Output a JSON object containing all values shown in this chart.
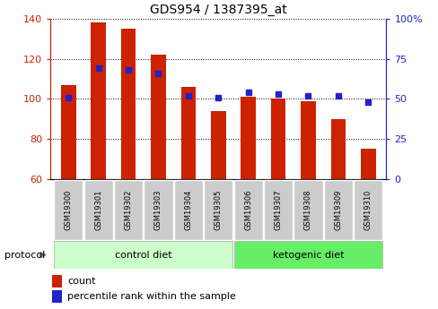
{
  "title": "GDS954 / 1387395_at",
  "samples": [
    "GSM19300",
    "GSM19301",
    "GSM19302",
    "GSM19303",
    "GSM19304",
    "GSM19305",
    "GSM19306",
    "GSM19307",
    "GSM19308",
    "GSM19309",
    "GSM19310"
  ],
  "counts": [
    107,
    138,
    135,
    122,
    106,
    94,
    101,
    100,
    99,
    90,
    75
  ],
  "percentile_ranks": [
    51,
    69,
    68,
    66,
    52,
    51,
    54,
    53,
    52,
    52,
    48
  ],
  "ylim_left": [
    60,
    140
  ],
  "ylim_right": [
    0,
    100
  ],
  "yticks_left": [
    60,
    80,
    100,
    120,
    140
  ],
  "yticks_right": [
    0,
    25,
    50,
    75,
    100
  ],
  "ytick_labels_right": [
    "0",
    "25",
    "50",
    "75",
    "100%"
  ],
  "bar_color": "#cc2200",
  "dot_color": "#2222cc",
  "control_label": "control diet",
  "ketogenic_label": "ketogenic diet",
  "control_bg": "#ccffcc",
  "ketogenic_bg": "#66ee66",
  "protocol_label": "protocol",
  "legend_count": "count",
  "legend_pct": "percentile rank within the sample",
  "left_color": "#cc2200",
  "right_color": "#2222cc",
  "tick_bg": "#cccccc",
  "bar_width": 0.5
}
